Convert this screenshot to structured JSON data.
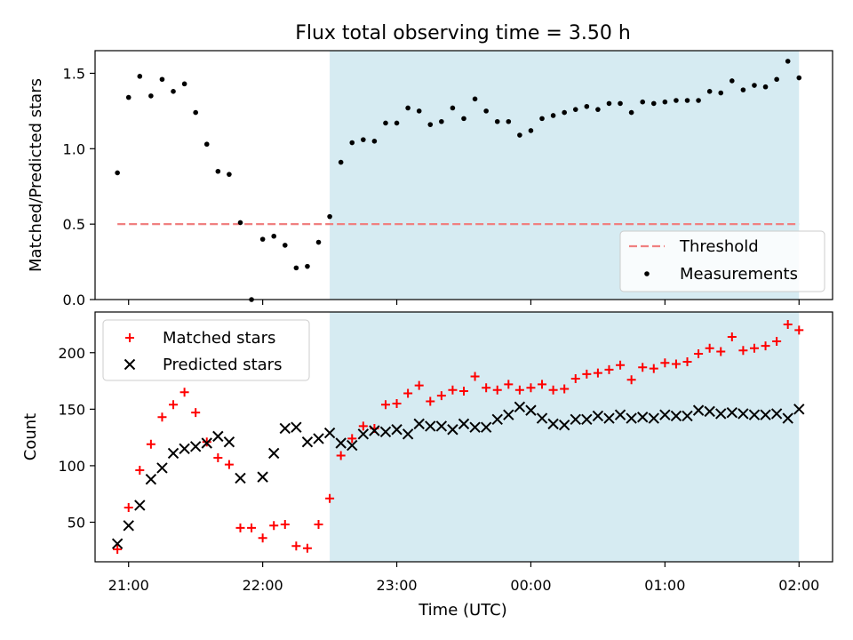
{
  "figure_title": "Flux total observing time = 3.50 h",
  "x_axis": {
    "label": "Time (UTC)",
    "ticks": [
      {
        "t": 21.0,
        "label": "21:00"
      },
      {
        "t": 22.0,
        "label": "22:00"
      },
      {
        "t": 23.0,
        "label": "23:00"
      },
      {
        "t": 24.0,
        "label": "00:00"
      },
      {
        "t": 25.0,
        "label": "01:00"
      },
      {
        "t": 26.0,
        "label": "02:00"
      }
    ]
  },
  "colors": {
    "shade": "#add8e6",
    "threshold": "#f08080",
    "measurement": "#000000",
    "matched": "#ff0000",
    "predicted": "#000000"
  },
  "chart_data": [
    {
      "type": "scatter",
      "title": "Flux total observing time = 3.50 h",
      "ylabel": "Matched/Predicted stars",
      "xlabel": "",
      "ylim": [
        0.0,
        1.65
      ],
      "yticks": [
        "0.0",
        "0.5",
        "1.0",
        "1.5"
      ],
      "ytick_values": [
        0.0,
        0.5,
        1.0,
        1.5
      ],
      "shaded_span": {
        "from": "22:30",
        "to": "02:00"
      },
      "legend": {
        "position": "lower right",
        "entries": [
          "Threshold",
          "Measurements"
        ]
      },
      "threshold": {
        "name": "Threshold",
        "value": 0.5,
        "style": "dashed"
      },
      "series": [
        {
          "name": "Measurements",
          "points": [
            [
              "20:55",
              0.84
            ],
            [
              "21:00",
              1.34
            ],
            [
              "21:05",
              1.48
            ],
            [
              "21:10",
              1.35
            ],
            [
              "21:15",
              1.46
            ],
            [
              "21:20",
              1.38
            ],
            [
              "21:25",
              1.43
            ],
            [
              "21:30",
              1.24
            ],
            [
              "21:35",
              1.03
            ],
            [
              "21:40",
              0.85
            ],
            [
              "21:45",
              0.83
            ],
            [
              "21:50",
              0.51
            ],
            [
              "21:55",
              0.0
            ],
            [
              "22:00",
              0.4
            ],
            [
              "22:05",
              0.42
            ],
            [
              "22:10",
              0.36
            ],
            [
              "22:15",
              0.21
            ],
            [
              "22:20",
              0.22
            ],
            [
              "22:25",
              0.38
            ],
            [
              "22:30",
              0.55
            ],
            [
              "22:35",
              0.91
            ],
            [
              "22:40",
              1.04
            ],
            [
              "22:45",
              1.06
            ],
            [
              "22:50",
              1.05
            ],
            [
              "22:55",
              1.17
            ],
            [
              "23:00",
              1.17
            ],
            [
              "23:05",
              1.27
            ],
            [
              "23:10",
              1.25
            ],
            [
              "23:15",
              1.16
            ],
            [
              "23:20",
              1.18
            ],
            [
              "23:25",
              1.27
            ],
            [
              "23:30",
              1.2
            ],
            [
              "23:35",
              1.33
            ],
            [
              "23:40",
              1.25
            ],
            [
              "23:45",
              1.18
            ],
            [
              "23:50",
              1.18
            ],
            [
              "23:55",
              1.09
            ],
            [
              "00:00",
              1.12
            ],
            [
              "00:05",
              1.2
            ],
            [
              "00:10",
              1.22
            ],
            [
              "00:15",
              1.24
            ],
            [
              "00:20",
              1.26
            ],
            [
              "00:25",
              1.28
            ],
            [
              "00:30",
              1.26
            ],
            [
              "00:35",
              1.3
            ],
            [
              "00:40",
              1.3
            ],
            [
              "00:45",
              1.24
            ],
            [
              "00:50",
              1.31
            ],
            [
              "00:55",
              1.3
            ],
            [
              "01:00",
              1.31
            ],
            [
              "01:05",
              1.32
            ],
            [
              "01:10",
              1.32
            ],
            [
              "01:15",
              1.32
            ],
            [
              "01:20",
              1.38
            ],
            [
              "01:25",
              1.37
            ],
            [
              "01:30",
              1.45
            ],
            [
              "01:35",
              1.39
            ],
            [
              "01:40",
              1.42
            ],
            [
              "01:45",
              1.41
            ],
            [
              "01:50",
              1.46
            ],
            [
              "01:55",
              1.58
            ],
            [
              "02:00",
              1.47
            ]
          ]
        }
      ]
    },
    {
      "type": "scatter",
      "title": "",
      "ylabel": "Count",
      "xlabel": "Time (UTC)",
      "ylim": [
        15,
        236
      ],
      "yticks": [
        "50",
        "100",
        "150",
        "200"
      ],
      "ytick_values": [
        50,
        100,
        150,
        200
      ],
      "shaded_span": {
        "from": "22:30",
        "to": "02:00"
      },
      "legend": {
        "position": "upper left",
        "entries": [
          "Matched stars",
          "Predicted stars"
        ]
      },
      "series": [
        {
          "name": "Matched stars",
          "points": [
            [
              "20:55",
              26
            ],
            [
              "21:00",
              63
            ],
            [
              "21:05",
              96
            ],
            [
              "21:10",
              119
            ],
            [
              "21:15",
              143
            ],
            [
              "21:20",
              154
            ],
            [
              "21:25",
              165
            ],
            [
              "21:30",
              147
            ],
            [
              "21:35",
              121
            ],
            [
              "21:40",
              107
            ],
            [
              "21:45",
              101
            ],
            [
              "21:50",
              45
            ],
            [
              "21:55",
              45
            ],
            [
              "22:00",
              36
            ],
            [
              "22:05",
              47
            ],
            [
              "22:10",
              48
            ],
            [
              "22:15",
              29
            ],
            [
              "22:20",
              27
            ],
            [
              "22:25",
              48
            ],
            [
              "22:30",
              71
            ],
            [
              "22:35",
              109
            ],
            [
              "22:40",
              124
            ],
            [
              "22:45",
              135
            ],
            [
              "22:50",
              133
            ],
            [
              "22:55",
              154
            ],
            [
              "23:00",
              155
            ],
            [
              "23:05",
              164
            ],
            [
              "23:10",
              171
            ],
            [
              "23:15",
              157
            ],
            [
              "23:20",
              162
            ],
            [
              "23:25",
              167
            ],
            [
              "23:30",
              166
            ],
            [
              "23:35",
              179
            ],
            [
              "23:40",
              169
            ],
            [
              "23:45",
              167
            ],
            [
              "23:50",
              172
            ],
            [
              "23:55",
              167
            ],
            [
              "00:00",
              169
            ],
            [
              "00:05",
              172
            ],
            [
              "00:10",
              167
            ],
            [
              "00:15",
              168
            ],
            [
              "00:20",
              177
            ],
            [
              "00:25",
              181
            ],
            [
              "00:30",
              182
            ],
            [
              "00:35",
              185
            ],
            [
              "00:40",
              189
            ],
            [
              "00:45",
              176
            ],
            [
              "00:50",
              187
            ],
            [
              "00:55",
              186
            ],
            [
              "01:00",
              191
            ],
            [
              "01:05",
              190
            ],
            [
              "01:10",
              192
            ],
            [
              "01:15",
              199
            ],
            [
              "01:20",
              204
            ],
            [
              "01:25",
              201
            ],
            [
              "01:30",
              214
            ],
            [
              "01:35",
              202
            ],
            [
              "01:40",
              204
            ],
            [
              "01:45",
              206
            ],
            [
              "01:50",
              210
            ],
            [
              "01:55",
              225
            ],
            [
              "02:00",
              220
            ]
          ]
        },
        {
          "name": "Predicted stars",
          "points": [
            [
              "20:55",
              31
            ],
            [
              "21:00",
              47
            ],
            [
              "21:05",
              65
            ],
            [
              "21:10",
              88
            ],
            [
              "21:15",
              98
            ],
            [
              "21:20",
              111
            ],
            [
              "21:25",
              115
            ],
            [
              "21:30",
              117
            ],
            [
              "21:35",
              120
            ],
            [
              "21:40",
              126
            ],
            [
              "21:45",
              121
            ],
            [
              "21:50",
              89
            ],
            [
              "22:00",
              90
            ],
            [
              "22:05",
              111
            ],
            [
              "22:10",
              133
            ],
            [
              "22:15",
              134
            ],
            [
              "22:20",
              121
            ],
            [
              "22:25",
              124
            ],
            [
              "22:30",
              129
            ],
            [
              "22:35",
              120
            ],
            [
              "22:40",
              118
            ],
            [
              "22:45",
              128
            ],
            [
              "22:50",
              131
            ],
            [
              "22:55",
              130
            ],
            [
              "23:00",
              132
            ],
            [
              "23:05",
              128
            ],
            [
              "23:10",
              137
            ],
            [
              "23:15",
              135
            ],
            [
              "23:20",
              135
            ],
            [
              "23:25",
              132
            ],
            [
              "23:30",
              137
            ],
            [
              "23:35",
              134
            ],
            [
              "23:40",
              134
            ],
            [
              "23:45",
              141
            ],
            [
              "23:50",
              145
            ],
            [
              "23:55",
              152
            ],
            [
              "00:00",
              149
            ],
            [
              "00:05",
              142
            ],
            [
              "00:10",
              137
            ],
            [
              "00:15",
              136
            ],
            [
              "00:20",
              141
            ],
            [
              "00:25",
              141
            ],
            [
              "00:30",
              144
            ],
            [
              "00:35",
              142
            ],
            [
              "00:40",
              145
            ],
            [
              "00:45",
              142
            ],
            [
              "00:50",
              143
            ],
            [
              "00:55",
              142
            ],
            [
              "01:00",
              145
            ],
            [
              "01:05",
              144
            ],
            [
              "01:10",
              144
            ],
            [
              "01:15",
              149
            ],
            [
              "01:20",
              148
            ],
            [
              "01:25",
              146
            ],
            [
              "01:30",
              147
            ],
            [
              "01:35",
              146
            ],
            [
              "01:40",
              145
            ],
            [
              "01:45",
              145
            ],
            [
              "01:50",
              146
            ],
            [
              "01:55",
              142
            ],
            [
              "02:00",
              150
            ]
          ]
        }
      ]
    }
  ]
}
